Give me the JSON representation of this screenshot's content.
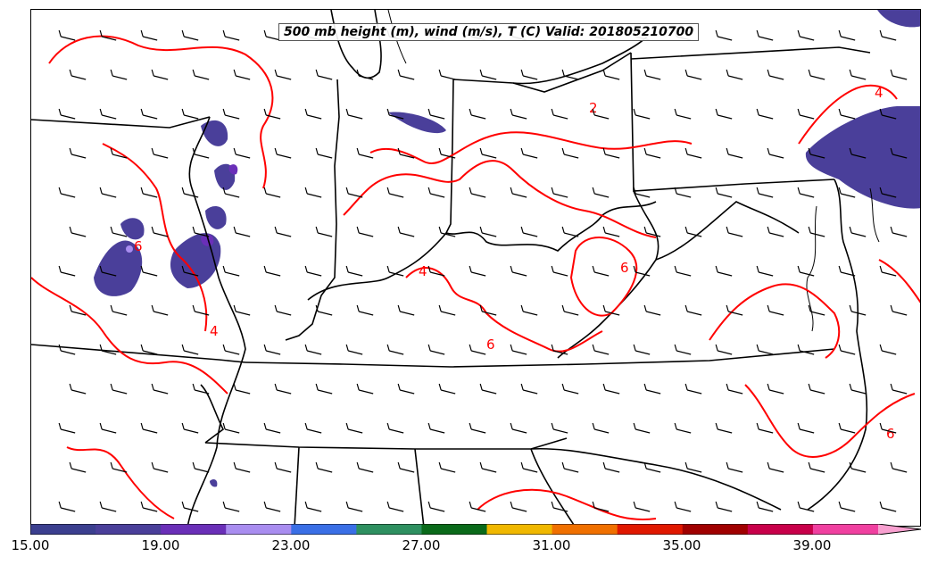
{
  "title": "500 mb height (m), wind (m/s), T (C) Valid: 201805210700",
  "colorbar": {
    "colors": [
      "#3b3f8f",
      "#4a3f9a",
      "#6a2fb8",
      "#a98df0",
      "#3a6fe6",
      "#2e9060",
      "#0a6a1a",
      "#f0b800",
      "#f07000",
      "#e01800",
      "#a00000",
      "#c8004a",
      "#f040a0",
      "#f8a0d0"
    ],
    "tick_labels": [
      "15.00",
      "19.00",
      "23.00",
      "27.00",
      "31.00",
      "35.00",
      "39.00"
    ]
  },
  "contour_labels": [
    "2",
    "4",
    "4",
    "4",
    "6",
    "6",
    "6",
    "6"
  ]
}
